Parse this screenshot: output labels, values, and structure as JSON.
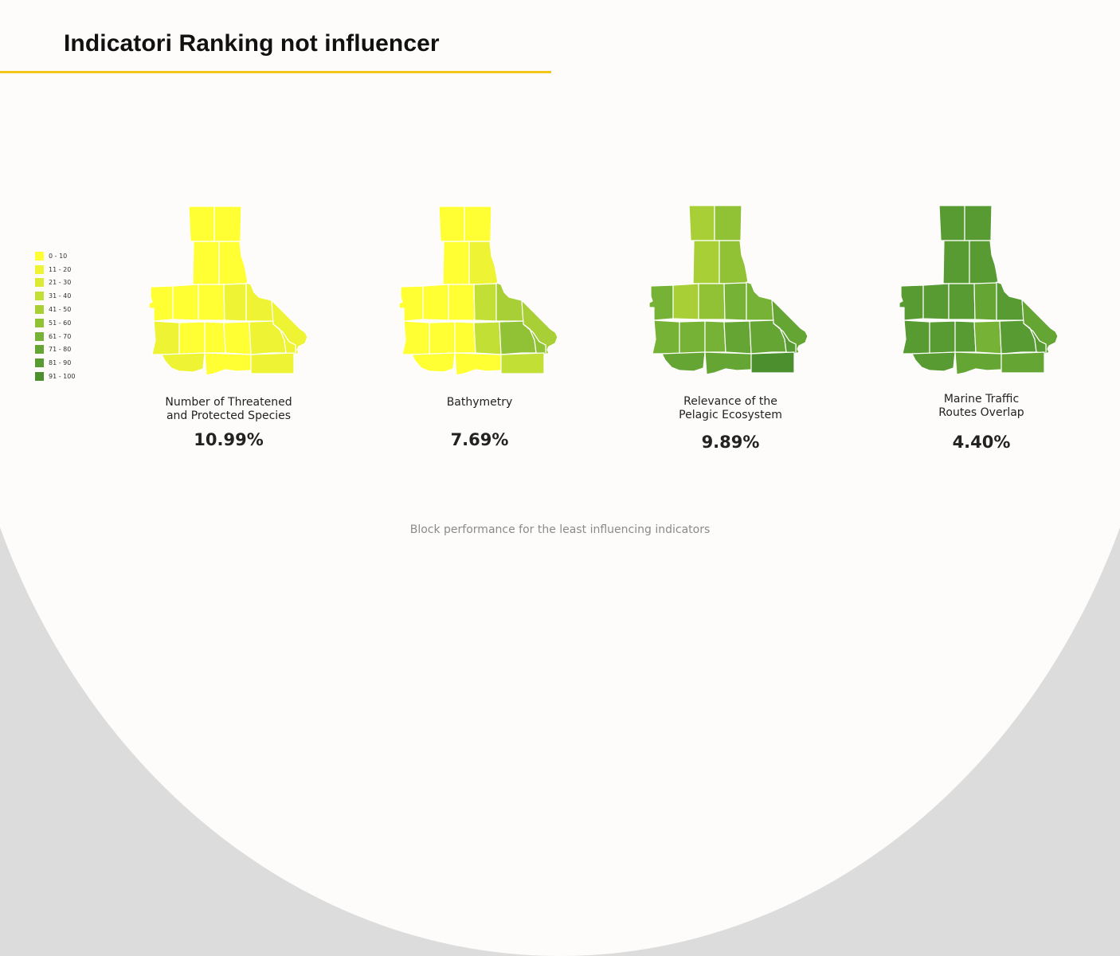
{
  "title": "Indicatori Ranking not influencer",
  "footer": "Block performance for the least influencing indicators",
  "legend": [
    {
      "label": "0 - 10",
      "color": "#ffff33"
    },
    {
      "label": "11 - 20",
      "color": "#eef434"
    },
    {
      "label": "21 - 30",
      "color": "#dcea34"
    },
    {
      "label": "31 - 40",
      "color": "#c2df35"
    },
    {
      "label": "41 - 50",
      "color": "#a8d036"
    },
    {
      "label": "51 - 60",
      "color": "#91c236"
    },
    {
      "label": "61 - 70",
      "color": "#76b235"
    },
    {
      "label": "71 - 80",
      "color": "#64a533"
    },
    {
      "label": "81 - 90",
      "color": "#589b32"
    },
    {
      "label": "91 - 100",
      "color": "#4b8f2e"
    }
  ],
  "maps": [
    {
      "label_lines": [
        "Number of Threatened",
        "and Protected Species"
      ],
      "value": "10.99%",
      "cells": [
        "#ffff33",
        "#ffff33",
        "#ffff33",
        "#ffff33",
        "#ffff33",
        "#ffff33",
        "#ffff33",
        "#eef434",
        "#eef434",
        "#eef434",
        "#eef434",
        "#ffff33",
        "#ffff33",
        "#ffff33",
        "#eef434",
        "#eef434",
        "#eef434",
        "#ffff33",
        "#eef434"
      ]
    },
    {
      "label_lines": [
        "Bathymetry"
      ],
      "value": "7.69%",
      "cells": [
        "#ffff33",
        "#ffff33",
        "#ffff33",
        "#eef434",
        "#ffff33",
        "#ffff33",
        "#ffff33",
        "#c2df35",
        "#a8d036",
        "#a8d036",
        "#ffff33",
        "#ffff33",
        "#ffff33",
        "#c2df35",
        "#91c236",
        "#91c236",
        "#ffff33",
        "#ffff33",
        "#c2df35"
      ]
    },
    {
      "label_lines": [
        "Relevance of the",
        "Pelagic Ecosystem"
      ],
      "value": "9.89%",
      "cells": [
        "#a8d036",
        "#91c236",
        "#a8d036",
        "#91c236",
        "#76b235",
        "#a8d036",
        "#91c236",
        "#76b235",
        "#76b235",
        "#64a533",
        "#76b235",
        "#76b235",
        "#76b235",
        "#64a533",
        "#64a533",
        "#589b32",
        "#64a533",
        "#64a533",
        "#4b8f2e"
      ]
    },
    {
      "label_lines": [
        "Marine Traffic",
        "Routes Overlap"
      ],
      "value": "4.40%",
      "cells": [
        "#589b32",
        "#589b32",
        "#589b32",
        "#589b32",
        "#589b32",
        "#589b32",
        "#589b32",
        "#64a533",
        "#589b32",
        "#64a533",
        "#589b32",
        "#589b32",
        "#589b32",
        "#76b235",
        "#589b32",
        "#589b32",
        "#589b32",
        "#64a533",
        "#64a533"
      ]
    }
  ]
}
